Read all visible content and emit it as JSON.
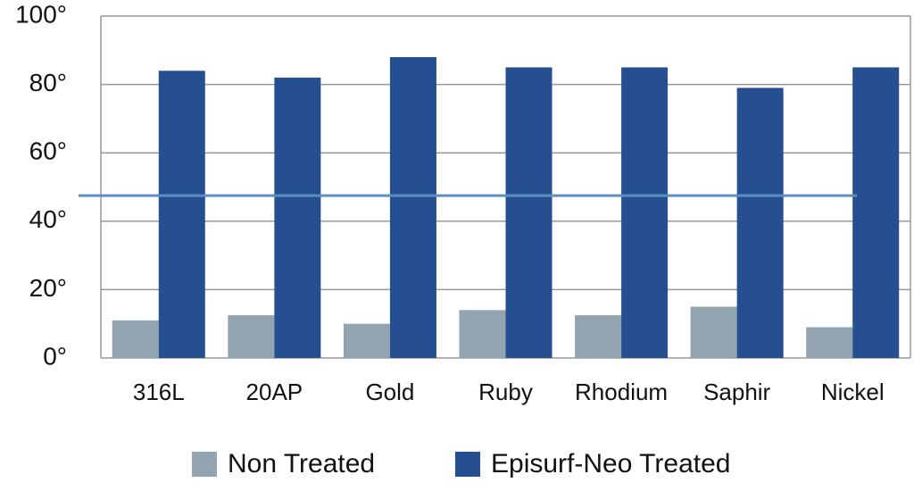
{
  "chart_data": {
    "type": "bar",
    "categories": [
      "316L",
      "20AP",
      "Gold",
      "Ruby",
      "Rhodium",
      "Saphir",
      "Nickel"
    ],
    "series": [
      {
        "name": "Non Treated",
        "color": "#91a4b0",
        "values": [
          11,
          12.5,
          10,
          14,
          12.5,
          15,
          9
        ]
      },
      {
        "name": "Episurf-Neo Treated",
        "color": "#264f91",
        "values": [
          84,
          82,
          88,
          85,
          85,
          79,
          85
        ]
      }
    ],
    "ylim": [
      0,
      100
    ],
    "yticks": [
      {
        "value": 0,
        "label": "0°"
      },
      {
        "value": 20,
        "label": "20°"
      },
      {
        "value": 40,
        "label": "40°"
      },
      {
        "value": 60,
        "label": "60°"
      },
      {
        "value": 80,
        "label": "80°"
      },
      {
        "value": 100,
        "label": "100°"
      }
    ],
    "grid": true,
    "reference_line": {
      "value": 47.5,
      "color": "#5b8fc0"
    },
    "legend": "bottom"
  }
}
